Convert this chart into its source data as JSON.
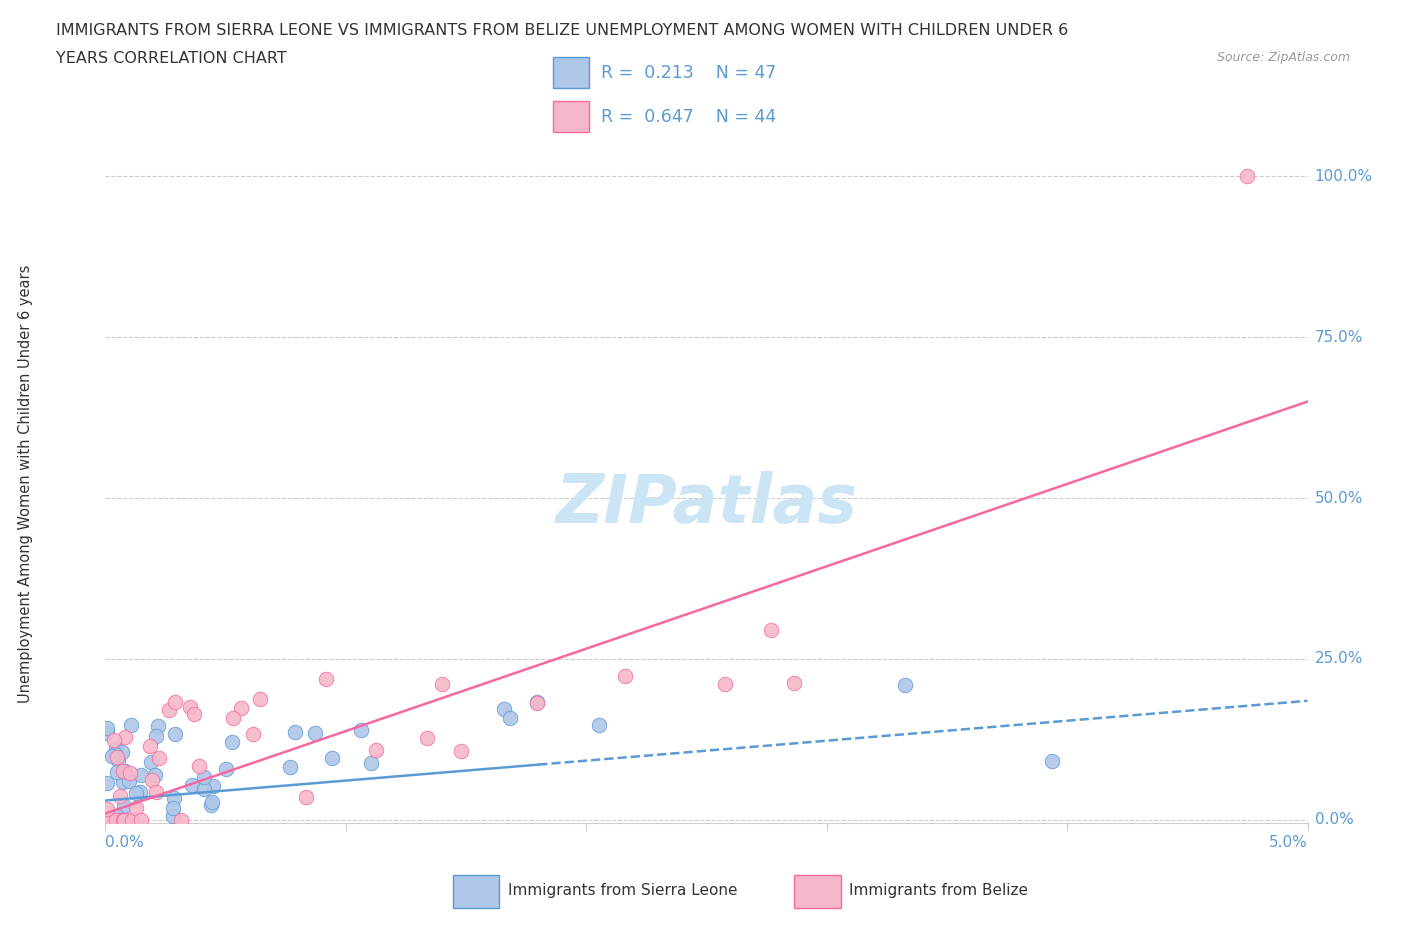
{
  "title_line1": "IMMIGRANTS FROM SIERRA LEONE VS IMMIGRANTS FROM BELIZE UNEMPLOYMENT AMONG WOMEN WITH CHILDREN UNDER 6",
  "title_line2": "YEARS CORRELATION CHART",
  "source": "Source: ZipAtlas.com",
  "ylabel": "Unemployment Among Women with Children Under 6 years",
  "sierra_leone_R": 0.213,
  "sierra_leone_N": 47,
  "belize_R": 0.647,
  "belize_N": 44,
  "sierra_leone_color": "#aec6e8",
  "belize_color": "#f5b8c8",
  "sierra_leone_line_color": "#5b9bd5",
  "belize_line_color": "#f768a1",
  "x_min": 0.0,
  "x_max": 0.05,
  "y_min": -0.005,
  "y_max": 1.05,
  "grid_color": "#cccccc",
  "watermark_color": "#cce5f5",
  "axis_label_color": "#5b9bd5",
  "title_color": "#333333",
  "source_color": "#999999"
}
